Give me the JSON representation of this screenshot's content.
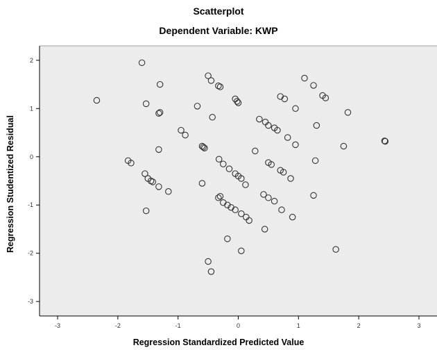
{
  "chart_data": {
    "type": "scatter",
    "title": "Scatterplot",
    "subtitle": "Dependent Variable: KWP",
    "xlabel": "Regression Standardized Predicted Value",
    "ylabel": "Regression Studentized Residual",
    "xlim": [
      -3.3,
      3.3
    ],
    "ylim": [
      -3.3,
      2.3
    ],
    "xticks": [
      -3,
      -2,
      -1,
      0,
      1,
      2,
      3
    ],
    "yticks": [
      -3,
      -2,
      -1,
      0,
      1,
      2
    ],
    "xtick_labels": [
      "-3",
      "-2",
      "-1",
      "0",
      "1",
      "2",
      "3"
    ],
    "ytick_labels": [
      "-3",
      "-2",
      "-1",
      "0",
      "1",
      "2"
    ],
    "grid": false,
    "plot_background": "#ececec",
    "marker_color": "#333333",
    "points": [
      [
        -2.35,
        1.17
      ],
      [
        -1.6,
        1.95
      ],
      [
        -1.3,
        1.5
      ],
      [
        -1.53,
        1.1
      ],
      [
        -1.3,
        0.92
      ],
      [
        -1.32,
        0.9
      ],
      [
        -1.32,
        0.15
      ],
      [
        -1.83,
        -0.08
      ],
      [
        -1.78,
        -0.13
      ],
      [
        -1.55,
        -0.35
      ],
      [
        -1.5,
        -0.45
      ],
      [
        -1.45,
        -0.5
      ],
      [
        -1.42,
        -0.52
      ],
      [
        -1.32,
        -0.62
      ],
      [
        -1.16,
        -0.72
      ],
      [
        -1.53,
        -1.12
      ],
      [
        -0.5,
        1.68
      ],
      [
        -0.45,
        1.58
      ],
      [
        -0.33,
        1.47
      ],
      [
        -0.3,
        1.45
      ],
      [
        -0.05,
        1.2
      ],
      [
        -0.02,
        1.15
      ],
      [
        0.0,
        1.12
      ],
      [
        -0.68,
        1.05
      ],
      [
        -0.43,
        0.82
      ],
      [
        -0.95,
        0.55
      ],
      [
        -0.88,
        0.45
      ],
      [
        -0.6,
        0.22
      ],
      [
        -0.58,
        0.2
      ],
      [
        -0.56,
        0.18
      ],
      [
        -0.32,
        -0.05
      ],
      [
        -0.25,
        -0.15
      ],
      [
        -0.15,
        -0.25
      ],
      [
        -0.05,
        -0.35
      ],
      [
        0.0,
        -0.4
      ],
      [
        0.05,
        -0.45
      ],
      [
        0.12,
        -0.58
      ],
      [
        0.28,
        0.12
      ],
      [
        0.35,
        0.78
      ],
      [
        0.5,
        0.65
      ],
      [
        0.6,
        0.6
      ],
      [
        0.65,
        0.55
      ],
      [
        0.45,
        0.72
      ],
      [
        0.7,
        1.25
      ],
      [
        0.77,
        1.2
      ],
      [
        0.95,
        1.0
      ],
      [
        0.82,
        0.4
      ],
      [
        0.95,
        0.25
      ],
      [
        0.5,
        -0.12
      ],
      [
        0.55,
        -0.16
      ],
      [
        0.7,
        -0.28
      ],
      [
        0.75,
        -0.32
      ],
      [
        0.87,
        -0.45
      ],
      [
        0.42,
        -0.78
      ],
      [
        0.5,
        -0.85
      ],
      [
        0.6,
        -0.92
      ],
      [
        0.72,
        -1.1
      ],
      [
        0.9,
        -1.25
      ],
      [
        0.44,
        -1.5
      ],
      [
        0.18,
        -1.32
      ],
      [
        0.13,
        -1.25
      ],
      [
        0.05,
        -1.18
      ],
      [
        -0.05,
        -1.1
      ],
      [
        -0.12,
        -1.05
      ],
      [
        -0.18,
        -1.0
      ],
      [
        -0.25,
        -0.95
      ],
      [
        -0.3,
        -0.82
      ],
      [
        -0.33,
        -0.85
      ],
      [
        -0.6,
        -0.55
      ],
      [
        -0.18,
        -1.7
      ],
      [
        0.05,
        -1.95
      ],
      [
        -0.5,
        -2.17
      ],
      [
        -0.45,
        -2.38
      ],
      [
        1.1,
        1.63
      ],
      [
        1.25,
        1.48
      ],
      [
        1.4,
        1.27
      ],
      [
        1.45,
        1.22
      ],
      [
        1.3,
        0.65
      ],
      [
        1.28,
        -0.08
      ],
      [
        1.25,
        -0.8
      ],
      [
        1.62,
        -1.92
      ],
      [
        1.75,
        0.22
      ],
      [
        1.82,
        0.92
      ],
      [
        2.43,
        0.33
      ],
      [
        2.44,
        0.32
      ]
    ]
  }
}
